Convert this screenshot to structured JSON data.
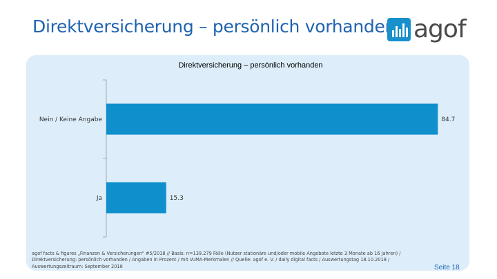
{
  "slide": {
    "title": "Direktversicherung – persönlich vorhanden",
    "logo_text": "agof",
    "footer": "agof facts & figures „Finanzen & Versicherungen“ #5/2018 // Basis: n=139.279 Fälle (Nutzer stationäre und/oder mobile Angebote letzte 3 Monate ab 16 Jahren) / Direktversicherung: persönlich vorhanden / Angaben in Prozent / mit VuMA-Merkmalen // Quelle: agof e. V. / daily digital facts / Auswertungstag 18.10.2018 / Auswertungszeitraum: September 2018",
    "page_number": "Seite 18"
  },
  "colors": {
    "accent": "#1f63b0",
    "bar": "#0f8fcb",
    "panel_bg": "#ddeefa"
  },
  "chart_data": {
    "type": "bar",
    "orientation": "horizontal",
    "title": "Direktversicherung – persönlich vorhanden",
    "categories": [
      "Nein / Keine Angabe",
      "Ja"
    ],
    "values": [
      84.7,
      15.3
    ],
    "value_labels": [
      "84.7",
      "15.3"
    ],
    "xlim": [
      0,
      85
    ],
    "xlabel": "",
    "ylabel": "",
    "grid": false,
    "legend": "none"
  }
}
